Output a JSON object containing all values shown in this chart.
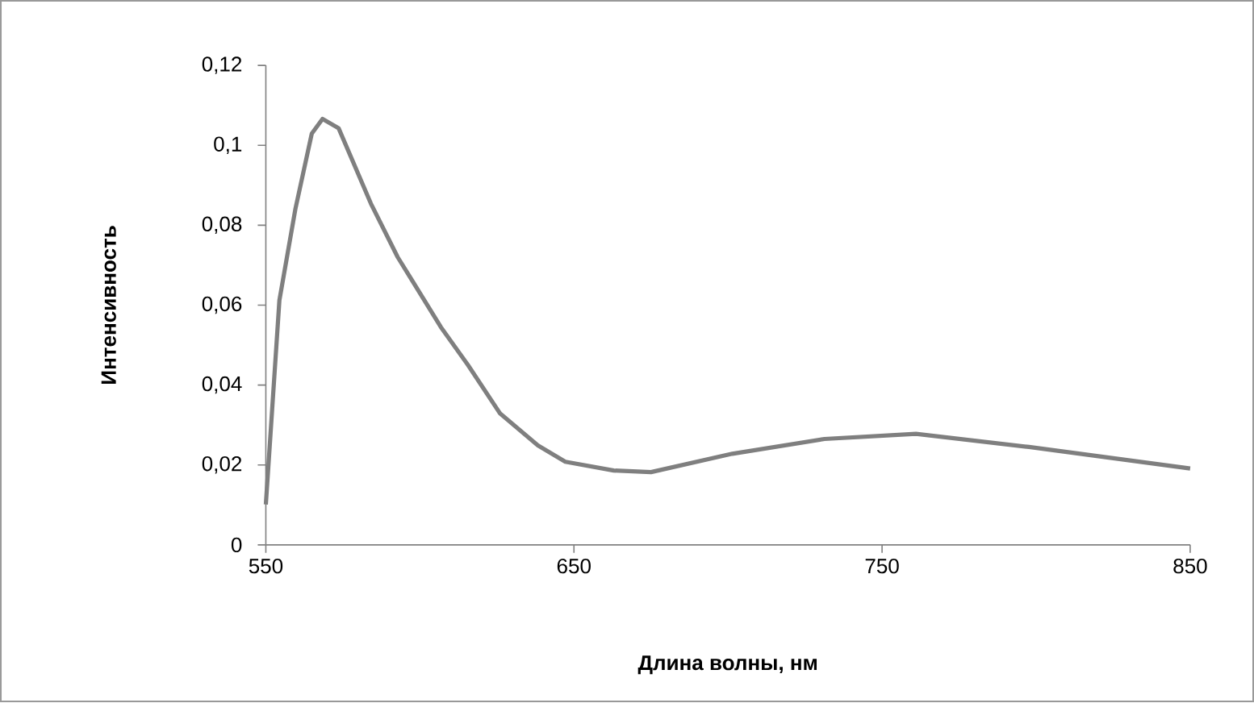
{
  "chart_data": {
    "type": "line",
    "xlabel": "Длина волны, нм",
    "ylabel": "Интенсивность",
    "series": [
      {
        "color": "#7f7f7f",
        "x": [
          550,
          554.4,
          559.6,
          564.9,
          568.4,
          573.6,
          584.1,
          592.8,
          606.8,
          615.6,
          626,
          638.3,
          647.2,
          662.9,
          675,
          701.4,
          731.3,
          761,
          797.7,
          850
        ],
        "values": [
          0.0101,
          0.0612,
          0.0841,
          0.1029,
          0.1066,
          0.1043,
          0.0854,
          0.072,
          0.0545,
          0.045,
          0.0329,
          0.0249,
          0.0208,
          0.0186,
          0.0182,
          0.0228,
          0.0265,
          0.0278,
          0.0245,
          0.0191
        ]
      }
    ],
    "xlim": [
      550,
      850
    ],
    "ylim": [
      0,
      0.12
    ],
    "xticks": [
      550,
      650,
      750,
      850
    ],
    "yticks": [
      0,
      {
        "value": 0.02,
        "label": "0,02"
      },
      {
        "value": 0.04,
        "label": "0,04"
      },
      {
        "value": 0.06,
        "label": "0,06"
      },
      {
        "value": 0.08,
        "label": "0,08"
      },
      {
        "value": 0.1,
        "label": "0,1"
      },
      {
        "value": 0.12,
        "label": "0,12"
      }
    ],
    "marker": "none",
    "line_style": "solid"
  }
}
